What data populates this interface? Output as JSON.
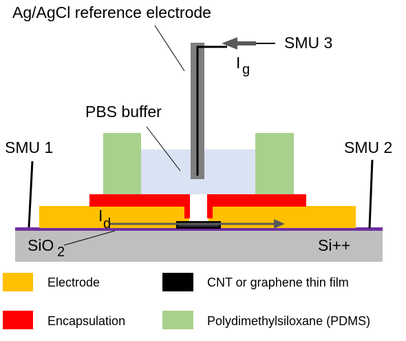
{
  "labels": {
    "reference_electrode": "Ag/AgCl reference electrode",
    "smu3": "SMU 3",
    "ig_main": "I",
    "ig_sub": "g",
    "pbs_buffer": "PBS buffer",
    "smu1": "SMU 1",
    "smu2": "SMU 2",
    "id_main": "I",
    "id_sub": "d",
    "sio2_main": "SiO",
    "sio2_sub": "2",
    "si_substrate": "Si++"
  },
  "legend": [
    {
      "label": "Electrode",
      "color": "#ffc000"
    },
    {
      "label": "Encapsulation",
      "color": "#ff0000"
    },
    {
      "label": "CNT or graphene thin film",
      "color": "#000000"
    },
    {
      "label": "Polydimethylsiloxane (PDMS)",
      "color": "#a9d18e"
    }
  ],
  "colors": {
    "electrode": "#ffc000",
    "encapsulation": "#ff0000",
    "film": "#000000",
    "pdms": "#a9d18e",
    "buffer": "#dae3f3",
    "substrate": "#bfbfbf",
    "oxide": "#7030a0",
    "probe": "#7f7f7f"
  }
}
